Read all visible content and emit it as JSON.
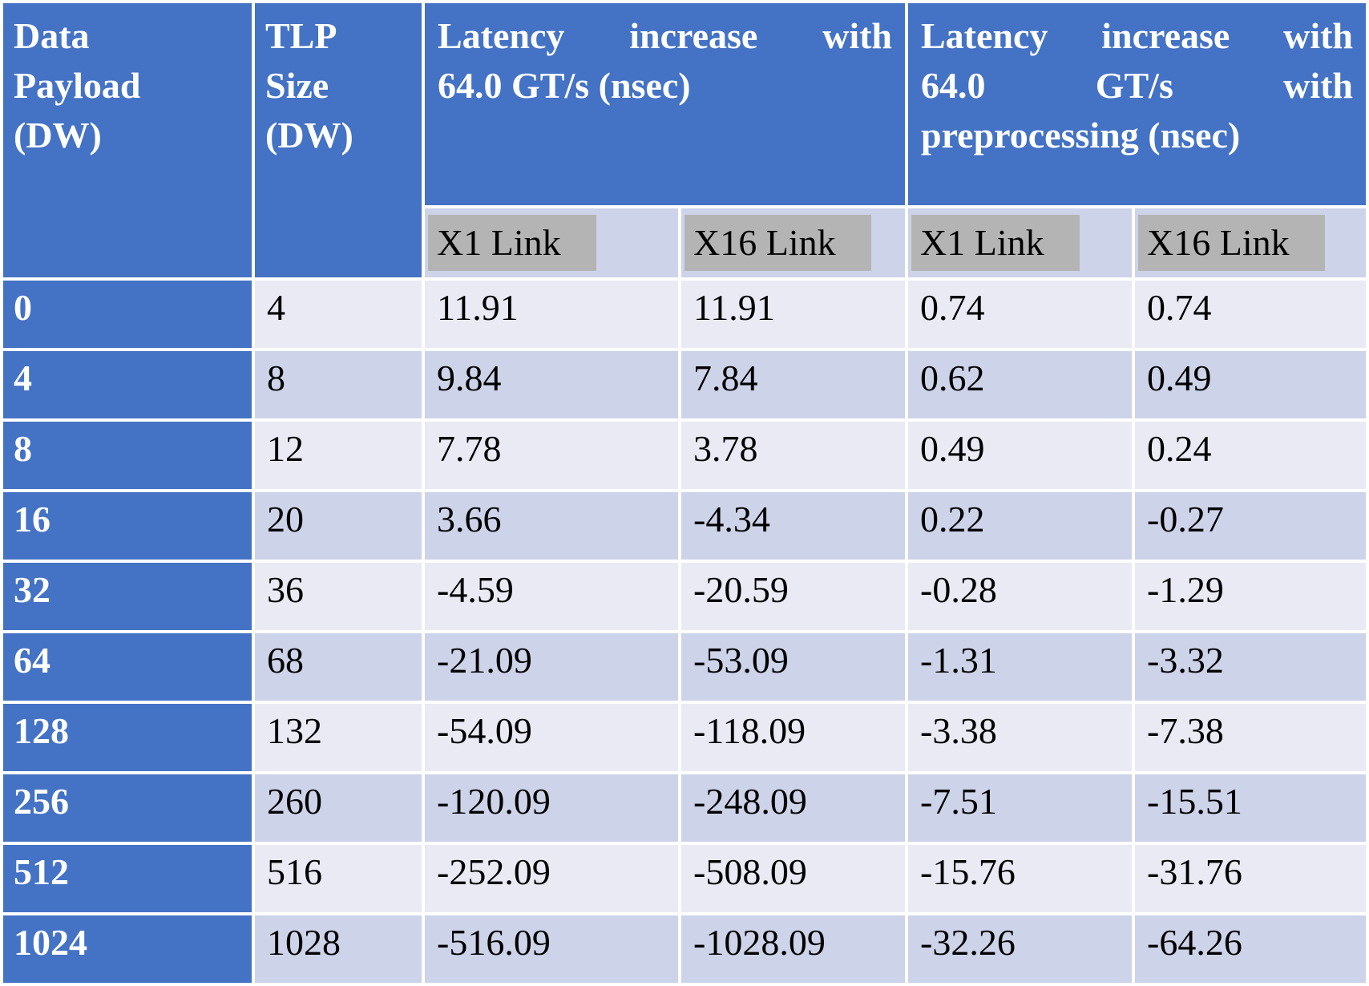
{
  "table": {
    "title_semantic": "Latency increase table",
    "unit": "nsec",
    "header": {
      "col1": {
        "lines": [
          "Data",
          "Payload",
          "(DW)"
        ]
      },
      "col2": {
        "lines": [
          "TLP",
          "Size",
          "(DW)"
        ]
      },
      "group1": {
        "lines": [
          "Latency increase with",
          "64.0 GT/s (nsec)"
        ]
      },
      "group2": {
        "lines": [
          "Latency increase with",
          "64.0 GT/s with",
          "preprocessing (nsec)"
        ]
      },
      "subheaders": [
        "X1 Link",
        "X16 Link",
        "X1 Link",
        "X16 Link"
      ]
    },
    "rows": [
      {
        "data_payload": "0",
        "tlp_size": "4",
        "x1": "11.91",
        "x16": "11.91",
        "pre_x1": "0.74",
        "pre_x16": "0.74"
      },
      {
        "data_payload": "4",
        "tlp_size": "8",
        "x1": "9.84",
        "x16": "7.84",
        "pre_x1": "0.62",
        "pre_x16": "0.49"
      },
      {
        "data_payload": "8",
        "tlp_size": "12",
        "x1": "7.78",
        "x16": "3.78",
        "pre_x1": "0.49",
        "pre_x16": "0.24"
      },
      {
        "data_payload": "16",
        "tlp_size": "20",
        "x1": "3.66",
        "x16": "-4.34",
        "pre_x1": "0.22",
        "pre_x16": "-0.27"
      },
      {
        "data_payload": "32",
        "tlp_size": "36",
        "x1": "-4.59",
        "x16": "-20.59",
        "pre_x1": "-0.28",
        "pre_x16": "-1.29"
      },
      {
        "data_payload": "64",
        "tlp_size": "68",
        "x1": "-21.09",
        "x16": "-53.09",
        "pre_x1": "-1.31",
        "pre_x16": "-3.32"
      },
      {
        "data_payload": "128",
        "tlp_size": "132",
        "x1": "-54.09",
        "x16": "-118.09",
        "pre_x1": "-3.38",
        "pre_x16": "-7.38"
      },
      {
        "data_payload": "256",
        "tlp_size": "260",
        "x1": "-120.09",
        "x16": "-248.09",
        "pre_x1": "-7.51",
        "pre_x16": "-15.51"
      },
      {
        "data_payload": "512",
        "tlp_size": "516",
        "x1": "-252.09",
        "x16": "-508.09",
        "pre_x1": "-15.76",
        "pre_x16": "-31.76"
      },
      {
        "data_payload": "1024",
        "tlp_size": "1028",
        "x1": "-516.09",
        "x16": "-1028.09",
        "pre_x1": "-32.26",
        "pre_x16": "-64.26"
      }
    ],
    "colors": {
      "header_blue": "#4472c4",
      "band_light": "#e9eaf4",
      "band_dark": "#cdd3e8",
      "subheader_highlight_gray": "#b4b4b4",
      "border_white": "#ffffff",
      "text_black": "#000000",
      "text_white": "#ffffff"
    }
  }
}
